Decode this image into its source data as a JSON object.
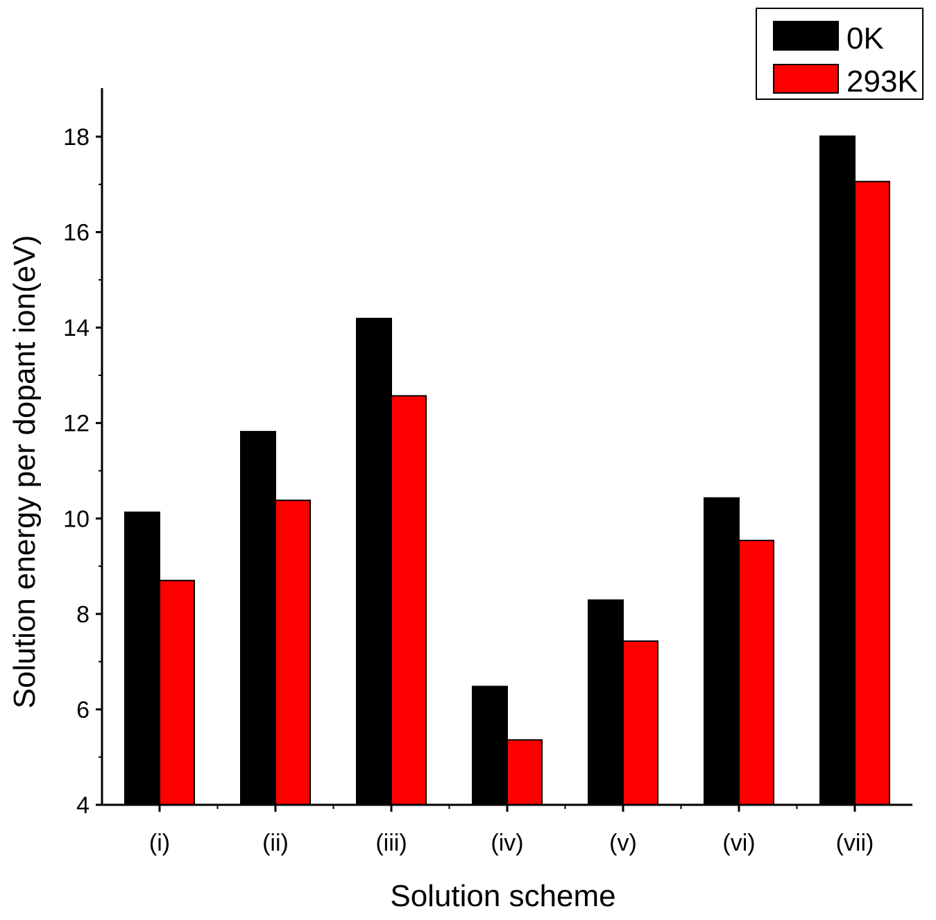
{
  "chart_data": {
    "type": "bar",
    "title": "",
    "xlabel": "Solution scheme",
    "ylabel": "Solution energy per dopant ion(eV)",
    "categories": [
      "(i)",
      "(ii)",
      "(iii)",
      "(iv)",
      "(v)",
      "(vi)",
      "(vii)"
    ],
    "series": [
      {
        "name": "0K",
        "color": "#000000",
        "values": [
          10.13,
          11.82,
          14.19,
          6.48,
          8.29,
          10.43,
          18.01
        ]
      },
      {
        "name": "293K",
        "color": "#ff0000",
        "values": [
          8.7,
          10.38,
          12.57,
          5.36,
          7.43,
          9.54,
          17.06
        ]
      }
    ],
    "ylim": [
      4,
      19
    ],
    "yticks": [
      "4",
      "6",
      "8",
      "10",
      "12",
      "14",
      "16",
      "18"
    ],
    "ytick_values": [
      4,
      6,
      8,
      10,
      12,
      14,
      16,
      18
    ],
    "grid": false,
    "legend": "top-right"
  }
}
